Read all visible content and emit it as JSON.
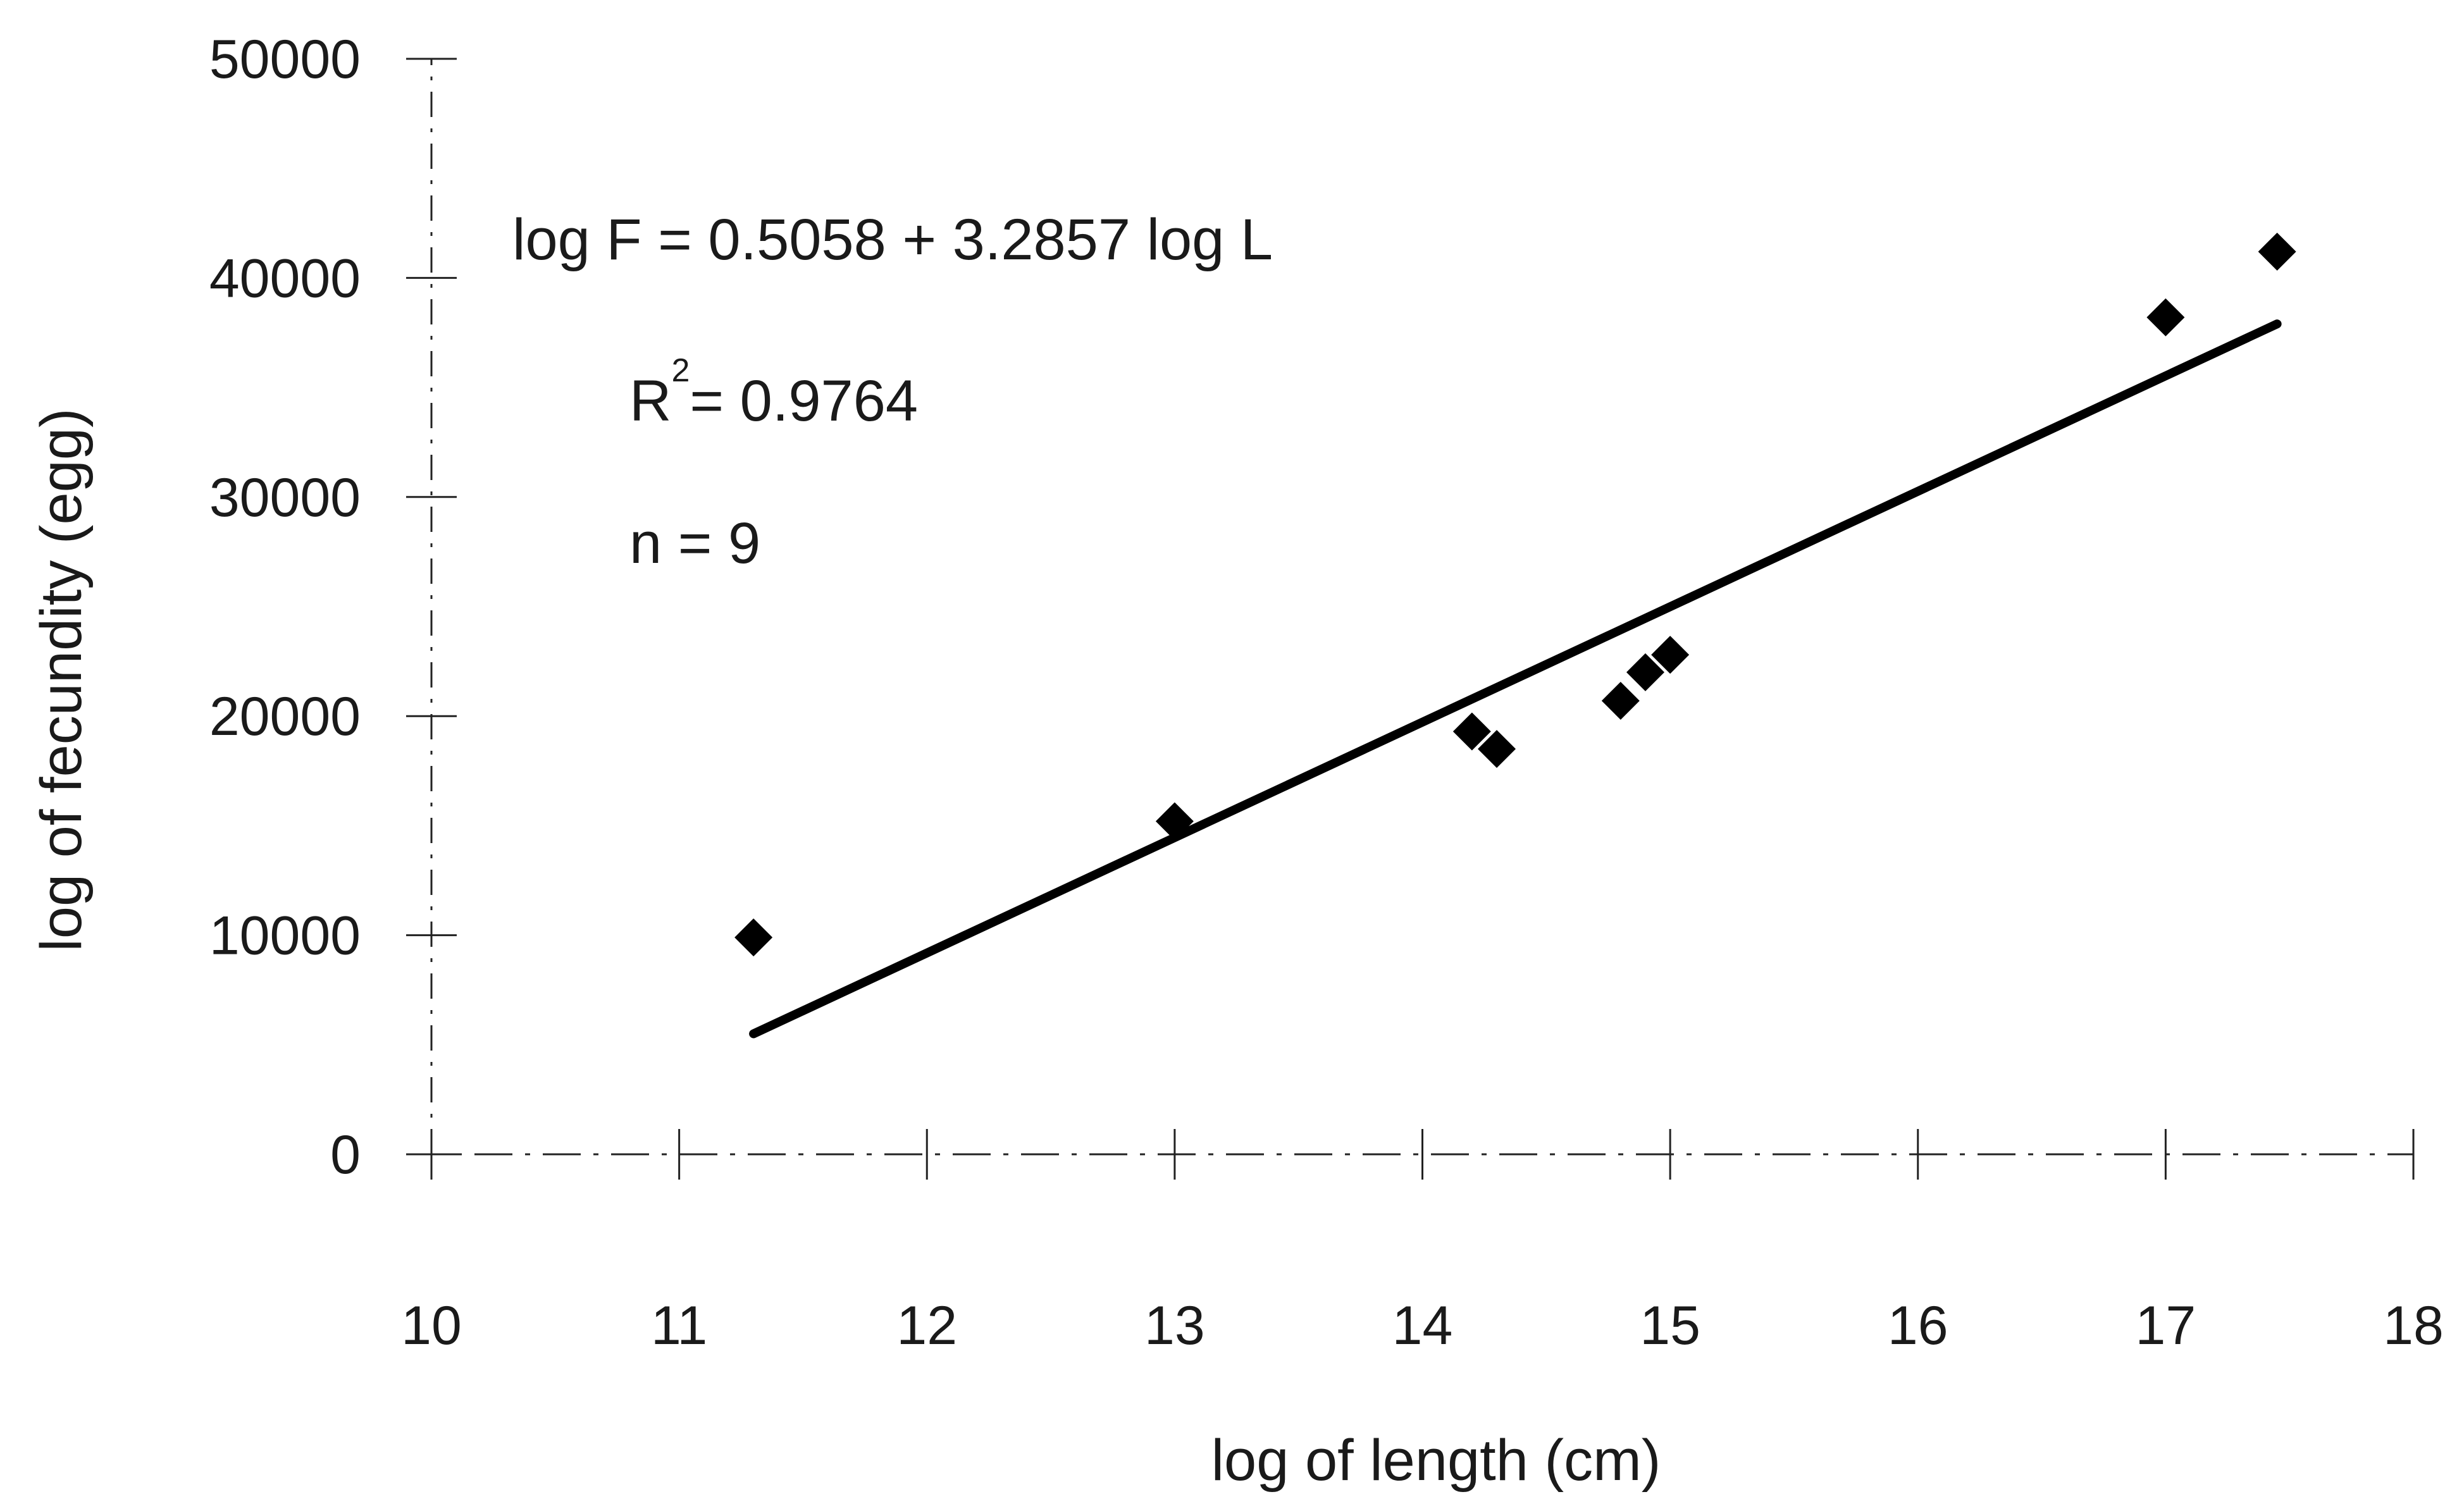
{
  "chart_data": {
    "type": "scatter",
    "xlabel": "log of length (cm)",
    "ylabel": "log of fecundity (egg)",
    "xlim": [
      10,
      18
    ],
    "ylim": [
      0,
      50000
    ],
    "x_ticks": [
      10,
      11,
      12,
      13,
      14,
      15,
      16,
      17,
      18
    ],
    "y_ticks": [
      0,
      10000,
      20000,
      30000,
      40000,
      50000
    ],
    "x_tick_labels": [
      "10",
      "11",
      "12",
      "13",
      "14",
      "15",
      "16",
      "17",
      "18"
    ],
    "y_tick_labels": [
      "0",
      "10000",
      "20000",
      "30000",
      "40000",
      "50000"
    ],
    "grid": false,
    "series": [
      {
        "marker": "diamond",
        "color": "#000000",
        "points": [
          {
            "x": 11.3,
            "y": 9900
          },
          {
            "x": 13.0,
            "y": 15200
          },
          {
            "x": 14.2,
            "y": 19300
          },
          {
            "x": 14.3,
            "y": 18500
          },
          {
            "x": 14.8,
            "y": 20700
          },
          {
            "x": 14.9,
            "y": 22000
          },
          {
            "x": 15.0,
            "y": 22800
          },
          {
            "x": 17.0,
            "y": 38200
          },
          {
            "x": 17.45,
            "y": 41200
          }
        ]
      }
    ],
    "trendline": {
      "type": "linear",
      "color": "#000000",
      "from": {
        "x": 11.3,
        "y": 5500
      },
      "to": {
        "x": 17.45,
        "y": 37900
      }
    },
    "annotations": {
      "equation": "log F = 0.5058 + 3.2857 log L",
      "r2_prefix": "R",
      "r2_superscript": "2",
      "r2_value": "= 0.9764",
      "n": "n  = 9"
    }
  }
}
